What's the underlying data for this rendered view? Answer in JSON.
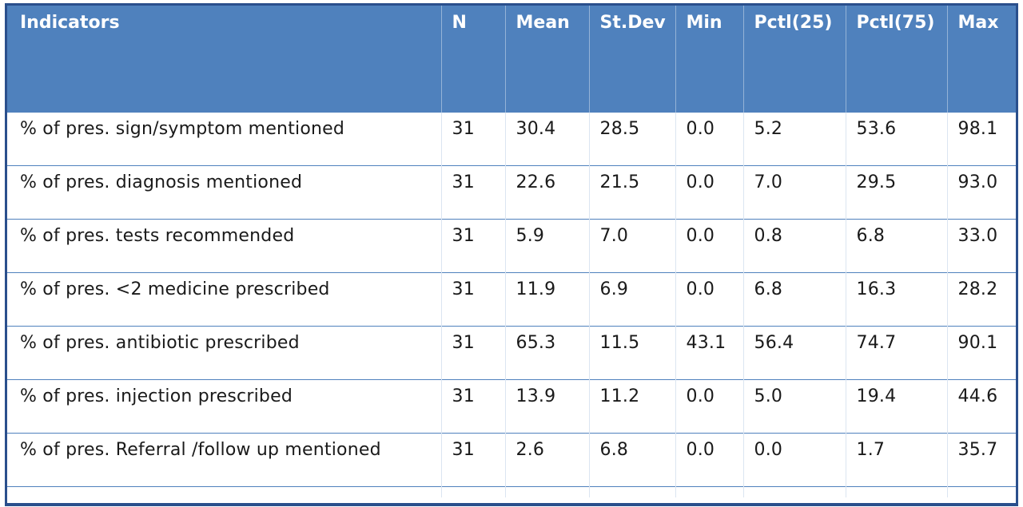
{
  "table": {
    "headers": [
      "Indicators",
      "N",
      "Mean",
      "St.Dev",
      "Min",
      "Pctl(25)",
      "Pctl(75)",
      "Max"
    ],
    "rows": [
      [
        "% of pres. sign/symptom mentioned",
        "31",
        "30.4",
        "28.5",
        "0.0",
        "5.2",
        "53.6",
        "98.1"
      ],
      [
        "% of pres. diagnosis mentioned",
        "31",
        "22.6",
        "21.5",
        "0.0",
        "7.0",
        "29.5",
        "93.0"
      ],
      [
        "% of pres. tests recommended",
        "31",
        "5.9",
        "7.0",
        "0.0",
        "0.8",
        "6.8",
        "33.0"
      ],
      [
        "% of pres. <2 medicine prescribed",
        "31",
        "11.9",
        "6.9",
        "0.0",
        "6.8",
        "16.3",
        "28.2"
      ],
      [
        "% of pres. antibiotic prescribed",
        "31",
        "65.3",
        "11.5",
        "43.1",
        "56.4",
        "74.7",
        "90.1"
      ],
      [
        "% of pres. injection prescribed",
        "31",
        "13.9",
        "11.2",
        "0.0",
        "5.0",
        "19.4",
        "44.6"
      ],
      [
        "% of pres. Referral /follow up mentioned",
        "31",
        "2.6",
        "6.8",
        "0.0",
        "0.0",
        "1.7",
        "35.7"
      ]
    ]
  },
  "colors": {
    "header_bg": "#4f81bd",
    "header_text": "#ffffff",
    "frame_border": "#2a4f8c",
    "row_rule": "#4f81bd"
  }
}
